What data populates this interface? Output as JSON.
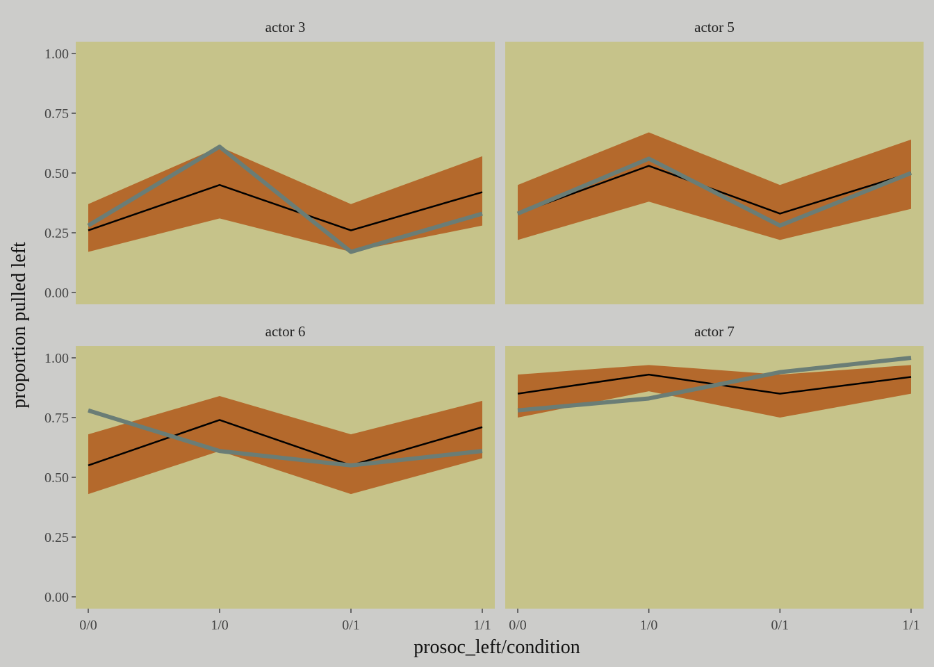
{
  "colors": {
    "background": "#CCCCCA",
    "panel": "#C6C38A",
    "ribbon": "#B4692C",
    "mean_line": "#000000",
    "observed_line": "#6A7D76",
    "tick": "#444444"
  },
  "chart_data": {
    "type": "line",
    "facet_by": "actor",
    "xlabel": "prosoc_left/condition",
    "ylabel": "proportion pulled left",
    "categories": [
      "0/0",
      "1/0",
      "0/1",
      "1/1"
    ],
    "ylim": [
      0,
      1
    ],
    "yticks": [
      "0.00",
      "0.25",
      "0.50",
      "0.75",
      "1.00"
    ],
    "grid": false,
    "panels": [
      {
        "label": "actor 3",
        "ribbon_lower": [
          0.17,
          0.31,
          0.17,
          0.28
        ],
        "ribbon_upper": [
          0.37,
          0.61,
          0.37,
          0.57
        ],
        "mean": [
          0.26,
          0.45,
          0.26,
          0.42
        ],
        "observed": [
          0.28,
          0.61,
          0.17,
          0.33
        ]
      },
      {
        "label": "actor 5",
        "ribbon_lower": [
          0.22,
          0.38,
          0.22,
          0.35
        ],
        "ribbon_upper": [
          0.45,
          0.67,
          0.45,
          0.64
        ],
        "mean": [
          0.33,
          0.53,
          0.33,
          0.5
        ],
        "observed": [
          0.33,
          0.56,
          0.28,
          0.5
        ]
      },
      {
        "label": "actor 6",
        "ribbon_lower": [
          0.43,
          0.61,
          0.43,
          0.58
        ],
        "ribbon_upper": [
          0.68,
          0.84,
          0.68,
          0.82
        ],
        "mean": [
          0.55,
          0.74,
          0.55,
          0.71
        ],
        "observed": [
          0.78,
          0.61,
          0.55,
          0.61
        ]
      },
      {
        "label": "actor 7",
        "ribbon_lower": [
          0.75,
          0.86,
          0.75,
          0.85
        ],
        "ribbon_upper": [
          0.93,
          0.97,
          0.93,
          0.97
        ],
        "mean": [
          0.85,
          0.93,
          0.85,
          0.92
        ],
        "observed": [
          0.78,
          0.83,
          0.94,
          1.0
        ]
      }
    ]
  }
}
